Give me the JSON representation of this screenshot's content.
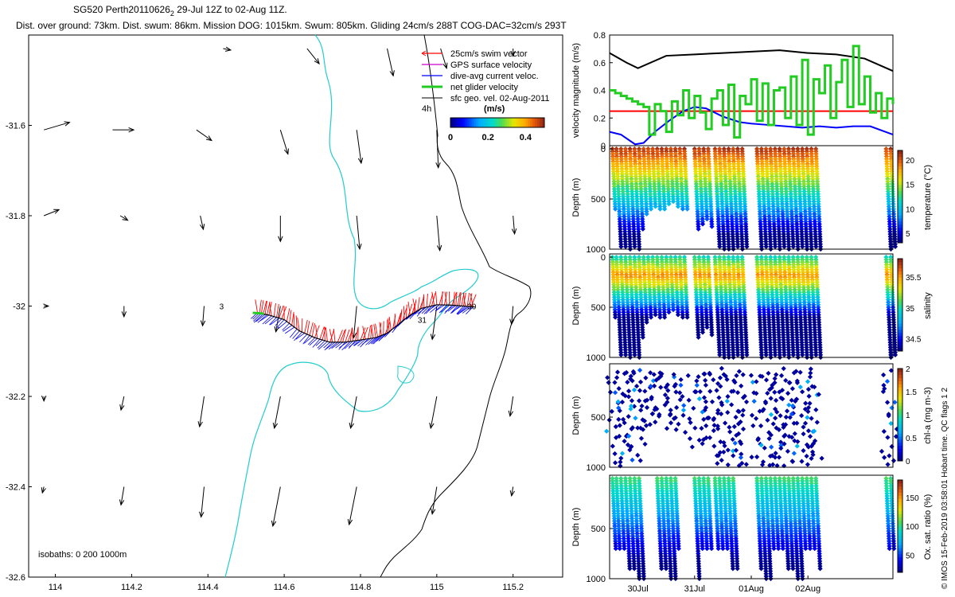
{
  "header": {
    "title_main": "SG520 Perth20110626",
    "title_sub": "2",
    "title_rest": " 29-Jul 12Z to 02-Aug 11Z.",
    "stats": "Dist. over ground: 73km. Dist. swum: 86km. Mission DOG: 1015km. Swum: 805km. Gliding 24cm/s 288T COG-DAC=32cm/s 293T"
  },
  "colors": {
    "swim": "#ff0000",
    "gps": "#cc00cc",
    "dac": "#0000ff",
    "net": "#22cc22",
    "isobath": "#22cccc",
    "coast": "#000000",
    "black_line": "#000000",
    "threshold": "#ff0000"
  },
  "icons": [
    "arrow-icon"
  ],
  "chart_data": [
    {
      "name": "map",
      "type": "scatter",
      "xlim": [
        113.93,
        115.33
      ],
      "ylim": [
        -32.6,
        -31.4
      ],
      "xticks": [
        "114",
        "114.2",
        "114.4",
        "114.6",
        "114.8",
        "115",
        "115.2"
      ],
      "yticks": [
        "-31.6",
        "-31.8",
        "-32",
        "-32.2",
        "-32.4",
        "-32.6"
      ],
      "legend": [
        {
          "label": "25cm/s swim vector",
          "color_key": "swim"
        },
        {
          "label": "GPS surface velocity",
          "color_key": "gps"
        },
        {
          "label": "dive-avg current veloc.",
          "color_key": "dac"
        },
        {
          "label": "net glider velocity",
          "color_key": "net"
        },
        {
          "label": "sfc geo. vel. 02-Aug-2011",
          "color_key": "black_line"
        }
      ],
      "legend_time_label": "4h",
      "colorbar": {
        "title": "(m/s)",
        "ticks": [
          "0",
          "0.2",
          "0.4"
        ]
      },
      "isobath_note": "isobaths: 0   200  1000m",
      "track_labels": [
        {
          "text": "3",
          "lon": 114.43,
          "lat": -32.0
        },
        {
          "text": "30",
          "lon": 115.08,
          "lat": -32.0
        },
        {
          "text": "31",
          "lon": 114.95,
          "lat": -32.03
        }
      ],
      "track": [
        [
          114.53,
          -32.015
        ],
        [
          114.56,
          -32.02
        ],
        [
          114.6,
          -32.03
        ],
        [
          114.64,
          -32.055
        ],
        [
          114.68,
          -32.07
        ],
        [
          114.72,
          -32.08
        ],
        [
          114.76,
          -32.08
        ],
        [
          114.8,
          -32.075
        ],
        [
          114.84,
          -32.07
        ],
        [
          114.87,
          -32.06
        ],
        [
          114.9,
          -32.04
        ],
        [
          114.93,
          -32.02
        ],
        [
          114.96,
          -32.005
        ],
        [
          115.0,
          -31.997
        ],
        [
          115.04,
          -31.998
        ],
        [
          115.07,
          -32.0
        ],
        [
          115.1,
          -32.002
        ]
      ],
      "geo_vectors": [
        {
          "lon": 113.97,
          "lat": -31.61,
          "u": 0.17,
          "v": 0.05
        },
        {
          "lon": 114.15,
          "lat": -31.61,
          "u": 0.14,
          "v": 0.0
        },
        {
          "lon": 114.37,
          "lat": -31.61,
          "u": 0.1,
          "v": -0.07
        },
        {
          "lon": 114.59,
          "lat": -31.61,
          "u": 0.05,
          "v": -0.16
        },
        {
          "lon": 114.79,
          "lat": -31.61,
          "u": 0.03,
          "v": -0.22
        },
        {
          "lon": 115.0,
          "lat": -31.61,
          "u": 0.01,
          "v": -0.25
        },
        {
          "lon": 114.44,
          "lat": -31.43,
          "u": 0.05,
          "v": -0.01
        },
        {
          "lon": 114.66,
          "lat": -31.43,
          "u": 0.08,
          "v": -0.1
        },
        {
          "lon": 114.87,
          "lat": -31.43,
          "u": 0.04,
          "v": -0.18
        },
        {
          "lon": 115.01,
          "lat": -31.43,
          "u": 0.04,
          "v": -0.13
        },
        {
          "lon": 115.2,
          "lat": -31.43,
          "u": 0.0,
          "v": -0.05
        },
        {
          "lon": 113.97,
          "lat": -31.8,
          "u": 0.1,
          "v": 0.04
        },
        {
          "lon": 114.17,
          "lat": -31.8,
          "u": 0.05,
          "v": -0.03
        },
        {
          "lon": 114.38,
          "lat": -31.8,
          "u": 0.02,
          "v": -0.09
        },
        {
          "lon": 114.59,
          "lat": -31.8,
          "u": 0.0,
          "v": -0.17
        },
        {
          "lon": 114.79,
          "lat": -31.8,
          "u": 0.02,
          "v": -0.22
        },
        {
          "lon": 115.0,
          "lat": -31.8,
          "u": 0.02,
          "v": -0.23
        },
        {
          "lon": 115.2,
          "lat": -31.8,
          "u": 0.01,
          "v": -0.12
        },
        {
          "lon": 113.97,
          "lat": -32.0,
          "u": 0.03,
          "v": 0.0
        },
        {
          "lon": 114.18,
          "lat": -32.0,
          "u": 0.0,
          "v": -0.07
        },
        {
          "lon": 114.39,
          "lat": -32.0,
          "u": -0.01,
          "v": -0.13
        },
        {
          "lon": 114.59,
          "lat": -32.0,
          "u": -0.03,
          "v": -0.17
        },
        {
          "lon": 114.79,
          "lat": -32.0,
          "u": -0.02,
          "v": -0.21
        },
        {
          "lon": 115.0,
          "lat": -32.0,
          "u": -0.03,
          "v": -0.22
        },
        {
          "lon": 115.2,
          "lat": -32.0,
          "u": -0.01,
          "v": -0.12
        },
        {
          "lon": 113.97,
          "lat": -32.2,
          "u": 0.0,
          "v": -0.03
        },
        {
          "lon": 114.18,
          "lat": -32.2,
          "u": -0.02,
          "v": -0.09
        },
        {
          "lon": 114.39,
          "lat": -32.2,
          "u": -0.03,
          "v": -0.2
        },
        {
          "lon": 114.59,
          "lat": -32.2,
          "u": -0.04,
          "v": -0.21
        },
        {
          "lon": 114.79,
          "lat": -32.2,
          "u": -0.04,
          "v": -0.21
        },
        {
          "lon": 115.0,
          "lat": -32.2,
          "u": -0.04,
          "v": -0.21
        },
        {
          "lon": 115.2,
          "lat": -32.2,
          "u": -0.02,
          "v": -0.13
        },
        {
          "lon": 113.97,
          "lat": -32.4,
          "u": -0.01,
          "v": -0.04
        },
        {
          "lon": 114.18,
          "lat": -32.4,
          "u": -0.02,
          "v": -0.12
        },
        {
          "lon": 114.39,
          "lat": -32.4,
          "u": -0.02,
          "v": -0.2
        },
        {
          "lon": 114.59,
          "lat": -32.4,
          "u": -0.05,
          "v": -0.26
        },
        {
          "lon": 114.79,
          "lat": -32.4,
          "u": -0.05,
          "v": -0.25
        },
        {
          "lon": 115.0,
          "lat": -32.4,
          "u": -0.03,
          "v": -0.18
        },
        {
          "lon": 115.2,
          "lat": -32.4,
          "u": -0.01,
          "v": -0.06
        }
      ]
    },
    {
      "name": "velocity",
      "type": "line",
      "ylabel": "velocity magnitude (m/s)",
      "ylim": [
        0,
        0.8
      ],
      "yticks": [
        "0",
        "0.2",
        "0.4",
        "0.6",
        "0.8"
      ],
      "x_days": [
        29.5,
        34.5
      ],
      "threshold": 0.25,
      "series": [
        {
          "color_key": "black_line",
          "x": [
            29.5,
            29.8,
            30.0,
            30.5,
            31.0,
            31.5,
            32.0,
            32.5,
            33.0,
            33.5,
            34.0,
            34.5
          ],
          "y": [
            0.67,
            0.6,
            0.56,
            0.65,
            0.66,
            0.67,
            0.68,
            0.69,
            0.67,
            0.66,
            0.63,
            0.54
          ]
        },
        {
          "color_key": "dac",
          "x": [
            29.5,
            29.7,
            29.95,
            30.1,
            30.3,
            30.55,
            30.8,
            31.0,
            31.2,
            31.5,
            31.8,
            32.0,
            32.3,
            32.6,
            32.9,
            33.2,
            33.5,
            33.8,
            34.1,
            34.5
          ],
          "y": [
            0.1,
            0.08,
            0.01,
            0.02,
            0.1,
            0.18,
            0.25,
            0.28,
            0.27,
            0.21,
            0.17,
            0.16,
            0.15,
            0.14,
            0.13,
            0.14,
            0.13,
            0.14,
            0.14,
            0.08
          ]
        },
        {
          "color_key": "net",
          "x": [
            29.5,
            29.6,
            29.7,
            29.8,
            29.9,
            30.0,
            30.1,
            30.2,
            30.3,
            30.4,
            30.5,
            30.6,
            30.7,
            30.8,
            30.9,
            31.0,
            31.1,
            31.2,
            31.3,
            31.4,
            31.5,
            31.6,
            31.7,
            31.8,
            31.9,
            32.0,
            32.1,
            32.2,
            32.3,
            32.4,
            32.5,
            32.6,
            32.7,
            32.8,
            32.9,
            33.0,
            33.1,
            33.2,
            33.3,
            33.4,
            33.5,
            33.6,
            33.7,
            33.8,
            33.9,
            34.0,
            34.1,
            34.2,
            34.3,
            34.4,
            34.5
          ],
          "y": [
            0.4,
            0.38,
            0.36,
            0.34,
            0.32,
            0.3,
            0.28,
            0.08,
            0.3,
            0.25,
            0.1,
            0.32,
            0.22,
            0.4,
            0.2,
            0.36,
            0.24,
            0.12,
            0.34,
            0.4,
            0.15,
            0.44,
            0.06,
            0.36,
            0.3,
            0.48,
            0.18,
            0.45,
            0.15,
            0.4,
            0.42,
            0.2,
            0.5,
            0.15,
            0.62,
            0.08,
            0.48,
            0.38,
            0.58,
            0.2,
            0.46,
            0.62,
            0.28,
            0.72,
            0.3,
            0.5,
            0.24,
            0.38,
            0.2,
            0.34,
            0.3
          ]
        }
      ]
    },
    {
      "name": "temperature",
      "type": "scatter",
      "ylabel": "Depth (m)",
      "ylim": [
        0,
        1000
      ],
      "yticks": [
        "0",
        "500",
        "1000"
      ],
      "colorbar_label": "temperature (°C)",
      "clim": [
        3,
        22
      ],
      "colorbar_ticks": [
        "5",
        "10",
        "15",
        "20"
      ],
      "profiles": [
        {
          "x": 29.55,
          "max_depth": 620
        },
        {
          "x": 29.62,
          "max_depth": 980
        },
        {
          "x": 29.7,
          "max_depth": 990
        },
        {
          "x": 29.78,
          "max_depth": 1000
        },
        {
          "x": 29.86,
          "max_depth": 990
        },
        {
          "x": 29.94,
          "max_depth": 1000
        },
        {
          "x": 30.02,
          "max_depth": 800
        },
        {
          "x": 30.1,
          "max_depth": 650
        },
        {
          "x": 30.18,
          "max_depth": 600
        },
        {
          "x": 30.26,
          "max_depth": 580
        },
        {
          "x": 30.34,
          "max_depth": 600
        },
        {
          "x": 30.42,
          "max_depth": 620
        },
        {
          "x": 30.5,
          "max_depth": 560
        },
        {
          "x": 30.58,
          "max_depth": 540
        },
        {
          "x": 30.66,
          "max_depth": 580
        },
        {
          "x": 30.74,
          "max_depth": 600
        },
        {
          "x": 30.82,
          "max_depth": 620
        },
        {
          "x": 31.0,
          "max_depth": 820
        },
        {
          "x": 31.08,
          "max_depth": 760
        },
        {
          "x": 31.16,
          "max_depth": 720
        },
        {
          "x": 31.24,
          "max_depth": 780
        },
        {
          "x": 31.36,
          "max_depth": 980
        },
        {
          "x": 31.44,
          "max_depth": 1000
        },
        {
          "x": 31.52,
          "max_depth": 1000
        },
        {
          "x": 31.6,
          "max_depth": 1000
        },
        {
          "x": 31.68,
          "max_depth": 980
        },
        {
          "x": 31.76,
          "max_depth": 1000
        },
        {
          "x": 31.84,
          "max_depth": 990
        },
        {
          "x": 32.1,
          "max_depth": 1000
        },
        {
          "x": 32.18,
          "max_depth": 990
        },
        {
          "x": 32.26,
          "max_depth": 1000
        },
        {
          "x": 32.34,
          "max_depth": 980
        },
        {
          "x": 32.42,
          "max_depth": 1000
        },
        {
          "x": 32.5,
          "max_depth": 990
        },
        {
          "x": 32.58,
          "max_depth": 1000
        },
        {
          "x": 32.66,
          "max_depth": 990
        },
        {
          "x": 32.74,
          "max_depth": 1000
        },
        {
          "x": 32.82,
          "max_depth": 990
        },
        {
          "x": 32.9,
          "max_depth": 1000
        },
        {
          "x": 32.98,
          "max_depth": 1000
        },
        {
          "x": 33.06,
          "max_depth": 990
        },
        {
          "x": 33.14,
          "max_depth": 1000
        },
        {
          "x": 34.38,
          "max_depth": 1000
        },
        {
          "x": 34.46,
          "max_depth": 990
        }
      ]
    },
    {
      "name": "salinity",
      "type": "scatter",
      "ylabel": "Depth (m)",
      "ylim": [
        0,
        1000
      ],
      "yticks": [
        "0",
        "500",
        "1000"
      ],
      "colorbar_label": "salinity",
      "clim": [
        34.3,
        35.8
      ],
      "colorbar_ticks": [
        "34.5",
        "35",
        "35.5"
      ]
    },
    {
      "name": "chlorophyll",
      "type": "scatter",
      "ylabel": "Depth (m)",
      "ylim": [
        0,
        1000
      ],
      "yticks": [
        "500",
        "1000"
      ],
      "colorbar_label": "chl-a (mg m-3)",
      "clim": [
        0,
        2
      ],
      "colorbar_ticks": [
        "0",
        "0.5",
        "1",
        "1.5",
        "2"
      ]
    },
    {
      "name": "oxygen",
      "type": "scatter",
      "ylabel": "Depth (m)",
      "ylim": [
        0,
        1000
      ],
      "yticks": [
        "500",
        "1000"
      ],
      "colorbar_label": "Ox. sat. ratio (%)",
      "clim": [
        20,
        180
      ],
      "colorbar_ticks": [
        "50",
        "100",
        "150"
      ],
      "xticks": [
        {
          "day": 30,
          "label": "30Jul"
        },
        {
          "day": 31,
          "label": "31Jul"
        },
        {
          "day": 32,
          "label": "01Aug"
        },
        {
          "day": 33,
          "label": "02Aug"
        }
      ],
      "profiles": [
        29.55,
        29.62,
        29.7,
        29.78,
        29.86,
        29.94,
        30.02,
        30.34,
        30.42,
        30.5,
        30.58,
        30.66,
        31.0,
        31.08,
        31.16,
        31.24,
        31.36,
        31.44,
        31.52,
        31.6,
        31.68,
        32.1,
        32.18,
        32.26,
        32.34,
        32.42,
        32.5,
        32.58,
        32.66,
        32.74,
        32.82,
        32.9,
        32.98,
        33.06,
        33.14,
        34.38,
        34.46
      ]
    }
  ],
  "side_note": "© IMOS 15-Feb-2019 03:58:01 Hobart time. QC flags 1  2"
}
